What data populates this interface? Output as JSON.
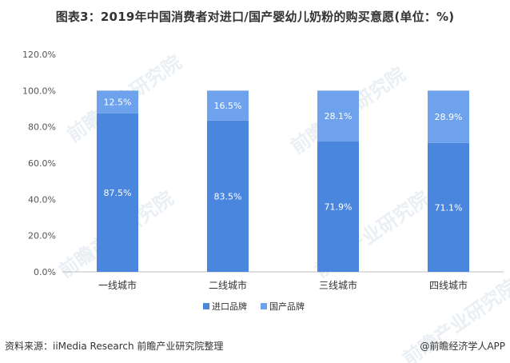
{
  "title": "图表3：2019年中国消费者对进口/国产婴幼儿奶粉的购买意愿(单位：%)",
  "footer": {
    "source": "资料来源：iiMedia Research 前瞻产业研究院整理",
    "credit": "@前瞻经济学人APP"
  },
  "watermark": "前瞻产业研究院",
  "colors": {
    "import": "#4a86de",
    "domestic": "#6ea2ec",
    "gridline": "#e6e6e6",
    "axis": "#bfbfbf"
  },
  "chart_data": {
    "type": "bar",
    "stacked": true,
    "categories": [
      "一线城市",
      "二线城市",
      "三线城市",
      "四线城市"
    ],
    "series": [
      {
        "name": "进口品牌",
        "values": [
          87.5,
          83.5,
          71.9,
          71.1
        ],
        "labels": [
          "87.5%",
          "83.5%",
          "71.9%",
          "71.1%"
        ]
      },
      {
        "name": "国产品牌",
        "values": [
          12.5,
          16.5,
          28.1,
          28.9
        ],
        "labels": [
          "12.5%",
          "16.5%",
          "28.1%",
          "28.9%"
        ]
      }
    ],
    "ylim": [
      0,
      120
    ],
    "yticks": [
      "0.0%",
      "20.0%",
      "40.0%",
      "60.0%",
      "80.0%",
      "100.0%",
      "120.0%"
    ],
    "legend_position": "bottom"
  }
}
